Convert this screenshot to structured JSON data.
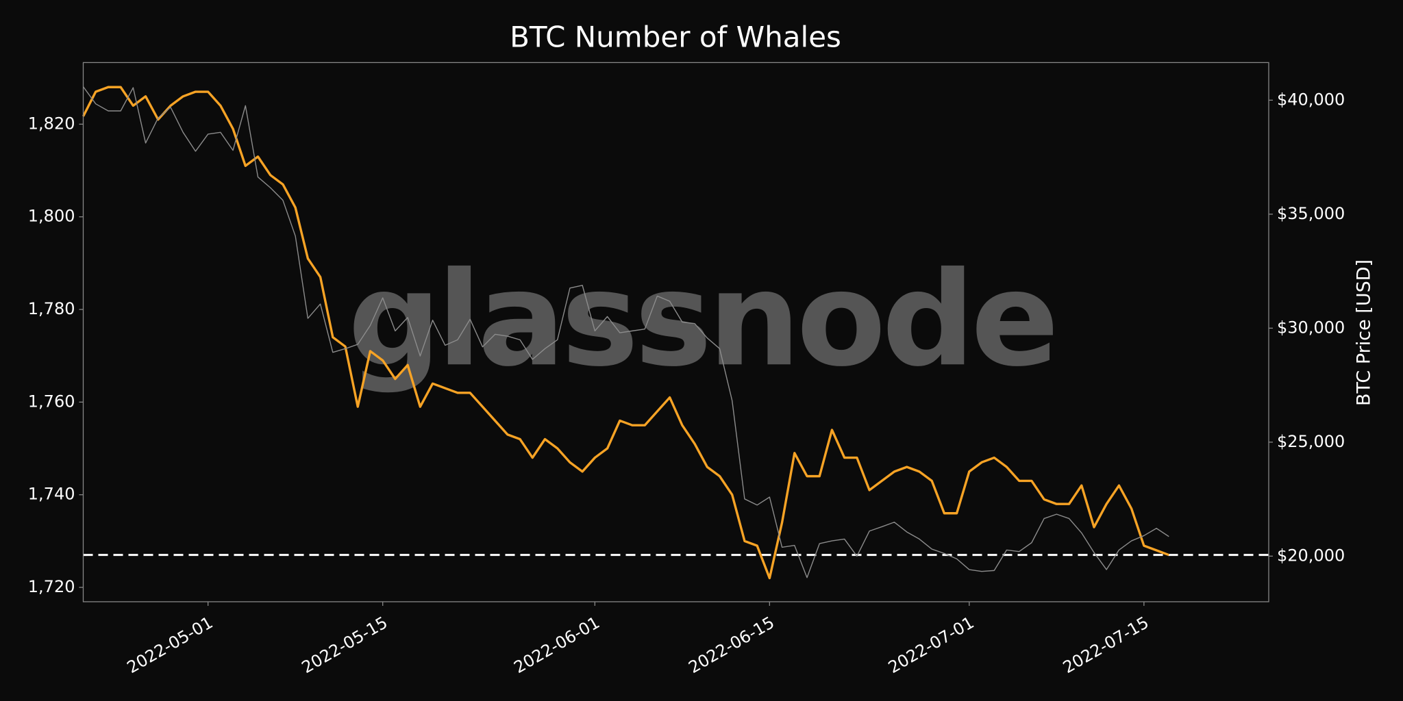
{
  "chart_data": {
    "type": "line",
    "title": "BTC Number of Whales",
    "y2label": "BTC Price [USD]",
    "watermark": "glassnode",
    "x": [
      "2022-04-21",
      "2022-04-22",
      "2022-04-23",
      "2022-04-24",
      "2022-04-25",
      "2022-04-26",
      "2022-04-27",
      "2022-04-28",
      "2022-04-29",
      "2022-04-30",
      "2022-05-01",
      "2022-05-02",
      "2022-05-03",
      "2022-05-04",
      "2022-05-05",
      "2022-05-06",
      "2022-05-07",
      "2022-05-08",
      "2022-05-09",
      "2022-05-10",
      "2022-05-11",
      "2022-05-12",
      "2022-05-13",
      "2022-05-14",
      "2022-05-15",
      "2022-05-16",
      "2022-05-17",
      "2022-05-18",
      "2022-05-19",
      "2022-05-20",
      "2022-05-21",
      "2022-05-22",
      "2022-05-23",
      "2022-05-24",
      "2022-05-25",
      "2022-05-26",
      "2022-05-27",
      "2022-05-28",
      "2022-05-29",
      "2022-05-30",
      "2022-05-31",
      "2022-06-01",
      "2022-06-02",
      "2022-06-03",
      "2022-06-04",
      "2022-06-05",
      "2022-06-06",
      "2022-06-07",
      "2022-06-08",
      "2022-06-09",
      "2022-06-10",
      "2022-06-11",
      "2022-06-12",
      "2022-06-13",
      "2022-06-14",
      "2022-06-15",
      "2022-06-16",
      "2022-06-17",
      "2022-06-18",
      "2022-06-19",
      "2022-06-20",
      "2022-06-21",
      "2022-06-22",
      "2022-06-23",
      "2022-06-24",
      "2022-06-25",
      "2022-06-26",
      "2022-06-27",
      "2022-06-28",
      "2022-06-29",
      "2022-06-30",
      "2022-07-01",
      "2022-07-02",
      "2022-07-03",
      "2022-07-04",
      "2022-07-05",
      "2022-07-06",
      "2022-07-07",
      "2022-07-08",
      "2022-07-09",
      "2022-07-10",
      "2022-07-11",
      "2022-07-12",
      "2022-07-13",
      "2022-07-14",
      "2022-07-15",
      "2022-07-16",
      "2022-07-17"
    ],
    "series": [
      {
        "color": "#f7a325",
        "values": [
          1821.7,
          1827,
          1828,
          1828,
          1824,
          1826,
          1821,
          1824,
          1826,
          1827,
          1827,
          1824,
          1819,
          1811,
          1813,
          1809,
          1807,
          1802,
          1791,
          1787,
          1774,
          1772,
          1759,
          1771,
          1769,
          1765,
          1768,
          1759,
          1764,
          1763,
          1762,
          1762,
          1759,
          1756,
          1753,
          1752,
          1748,
          1752,
          1750,
          1747,
          1745,
          1748,
          1750,
          1756,
          1755,
          1755,
          1758,
          1761,
          1755,
          1751,
          1746,
          1744,
          1740,
          1730,
          1729,
          1722,
          1734,
          1749,
          1744,
          1744,
          1754,
          1748,
          1748,
          1741,
          1743,
          1745,
          1746,
          1745,
          1743,
          1736,
          1736,
          1745,
          1747,
          1748,
          1746,
          1743,
          1743,
          1739,
          1738,
          1738,
          1742,
          1733,
          1738,
          1742,
          1737,
          1729,
          1728,
          1727
        ]
      },
      {
        "color": "#8c8c8c",
        "axis": "y2",
        "values": [
          40590,
          39840,
          39530,
          39530,
          40550,
          38120,
          39220,
          39690,
          38590,
          37760,
          38510,
          38590,
          37800,
          39760,
          36630,
          36160,
          35610,
          34040,
          30430,
          31060,
          28940,
          29100,
          29290,
          30120,
          31330,
          29880,
          30470,
          28780,
          30350,
          29250,
          29490,
          30390,
          29180,
          29730,
          29650,
          29490,
          28630,
          29100,
          29490,
          31760,
          31880,
          29880,
          30510,
          29800,
          29880,
          29960,
          31410,
          31180,
          30270,
          30200,
          29570,
          29100,
          26820,
          22510,
          22240,
          22590,
          20390,
          20470,
          19060,
          20550,
          20670,
          20750,
          20000,
          21100,
          21290,
          21490,
          21060,
          20750,
          20310,
          20120,
          19880,
          19410,
          19330,
          19370,
          20270,
          20200,
          20590,
          21650,
          21840,
          21650,
          21020,
          20160,
          19410,
          20270,
          20670,
          20900,
          21220,
          20860
        ]
      }
    ],
    "hline": 1727,
    "hline_color": "#ffffff",
    "xlim": [
      "2022-04-21",
      "2022-07-25"
    ],
    "xticks": [
      "2022-05-01",
      "2022-05-15",
      "2022-06-01",
      "2022-06-15",
      "2022-07-01",
      "2022-07-15"
    ],
    "ylim": [
      1716.9,
      1833.3
    ],
    "yticks": [
      {
        "value": 1720,
        "label": "1,720"
      },
      {
        "value": 1740,
        "label": "1,740"
      },
      {
        "value": 1760,
        "label": "1,760"
      },
      {
        "value": 1780,
        "label": "1,780"
      },
      {
        "value": 1800,
        "label": "1,800"
      },
      {
        "value": 1820,
        "label": "1,820"
      }
    ],
    "y2lim": [
      18000,
      41650
    ],
    "y2ticks": [
      {
        "value": 20000,
        "label": "$20,000"
      },
      {
        "value": 25000,
        "label": "$25,000"
      },
      {
        "value": 30000,
        "label": "$30,000"
      },
      {
        "value": 35000,
        "label": "$35,000"
      },
      {
        "value": 40000,
        "label": "$40,000"
      }
    ],
    "grid": false
  }
}
